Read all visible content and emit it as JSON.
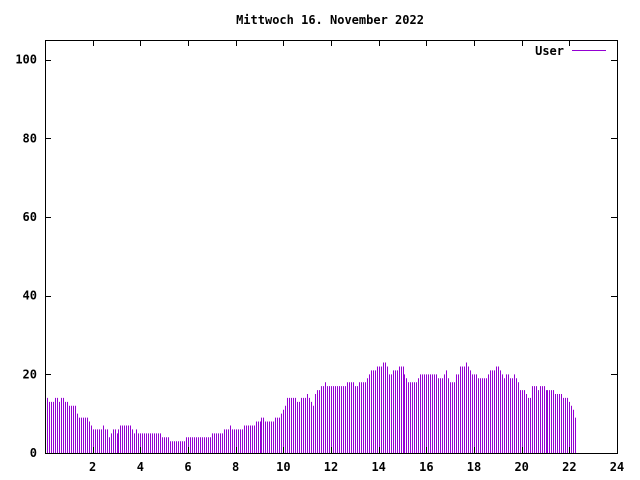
{
  "chart_data": {
    "type": "bar",
    "title": "Mittwoch 16. November 2022",
    "xlabel": "",
    "ylabel": "",
    "xlim": [
      0,
      24
    ],
    "ylim": [
      0,
      105
    ],
    "x_ticks": [
      "2",
      "4",
      "6",
      "8",
      "10",
      "12",
      "14",
      "16",
      "18",
      "20",
      "22",
      "24"
    ],
    "y_ticks": [
      "0",
      "20",
      "40",
      "60",
      "80",
      "100"
    ],
    "x_tick_values": [
      2,
      4,
      6,
      8,
      10,
      12,
      14,
      16,
      18,
      20,
      22,
      24
    ],
    "y_tick_values": [
      0,
      20,
      40,
      60,
      80,
      100
    ],
    "legend_position": "top-right",
    "grid": false,
    "series": [
      {
        "name": "User",
        "color": "#9400d3",
        "interval_minutes": 5,
        "values": [
          13,
          14,
          13,
          13,
          13,
          14,
          14,
          13,
          14,
          14,
          13,
          13,
          12,
          12,
          12,
          12,
          10,
          9,
          9,
          9,
          9,
          9,
          8,
          7,
          6,
          6,
          6,
          6,
          6,
          7,
          6,
          6,
          4,
          5,
          6,
          6,
          5,
          6,
          7,
          7,
          7,
          7,
          7,
          7,
          6,
          5,
          6,
          5,
          5,
          5,
          5,
          5,
          5,
          5,
          5,
          5,
          5,
          5,
          5,
          4,
          4,
          4,
          4,
          3,
          3,
          3,
          3,
          3,
          3,
          3,
          3,
          4,
          4,
          4,
          4,
          4,
          4,
          4,
          4,
          4,
          4,
          4,
          4,
          4,
          5,
          5,
          5,
          5,
          5,
          5,
          6,
          6,
          6,
          7,
          6,
          6,
          6,
          6,
          6,
          6,
          7,
          7,
          7,
          7,
          7,
          7,
          8,
          8,
          8,
          9,
          9,
          8,
          8,
          8,
          8,
          8,
          9,
          9,
          9,
          10,
          11,
          12,
          14,
          14,
          14,
          14,
          14,
          13,
          13,
          14,
          14,
          14,
          15,
          14,
          13,
          12,
          15,
          16,
          16,
          17,
          17,
          18,
          17,
          17,
          17,
          17,
          17,
          17,
          17,
          17,
          17,
          17,
          18,
          18,
          18,
          18,
          17,
          17,
          18,
          18,
          18,
          18,
          19,
          20,
          21,
          21,
          21,
          22,
          22,
          22,
          23,
          23,
          22,
          20,
          20,
          21,
          21,
          21,
          22,
          22,
          22,
          20,
          19,
          18,
          18,
          18,
          18,
          18,
          19,
          20,
          20,
          20,
          20,
          20,
          20,
          20,
          20,
          20,
          19,
          19,
          19,
          20,
          21,
          19,
          18,
          18,
          18,
          20,
          20,
          22,
          22,
          22,
          23,
          22,
          21,
          20,
          20,
          20,
          19,
          19,
          19,
          19,
          19,
          20,
          21,
          21,
          21,
          22,
          22,
          21,
          20,
          19,
          20,
          20,
          19,
          19,
          20,
          19,
          18,
          16,
          16,
          16,
          15,
          14,
          14,
          17,
          17,
          17,
          16,
          17,
          17,
          17,
          16,
          16,
          16,
          16,
          16,
          15,
          15,
          15,
          15,
          14,
          14,
          14,
          13,
          12,
          11,
          9
        ]
      }
    ]
  }
}
